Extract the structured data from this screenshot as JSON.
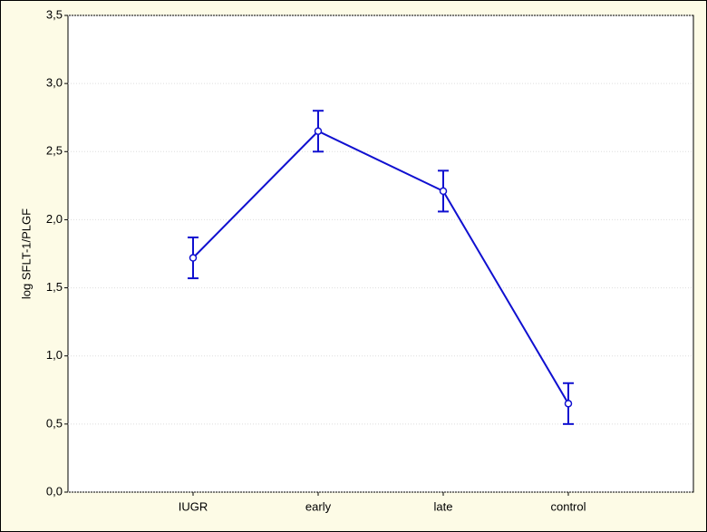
{
  "chart_data": {
    "type": "line",
    "y_label": "log SFLT-1/PLGF",
    "categories": [
      "IUGR",
      "early",
      "late",
      "control"
    ],
    "values": [
      1.72,
      2.65,
      2.21,
      0.65
    ],
    "errors": [
      0.15,
      0.15,
      0.15,
      0.15
    ],
    "color": "#1010d0",
    "ylim": [
      0,
      3.5
    ],
    "yticks": [
      {
        "value": 0,
        "label": "0,0"
      },
      {
        "value": 0.5,
        "label": "0,5"
      },
      {
        "value": 1,
        "label": "1,0"
      },
      {
        "value": 1.5,
        "label": "1,5"
      },
      {
        "value": 2,
        "label": "2,0"
      },
      {
        "value": 2.5,
        "label": "2,5"
      },
      {
        "value": 3,
        "label": "3,0"
      },
      {
        "value": 3.5,
        "label": "3,5"
      }
    ],
    "grid": true
  }
}
